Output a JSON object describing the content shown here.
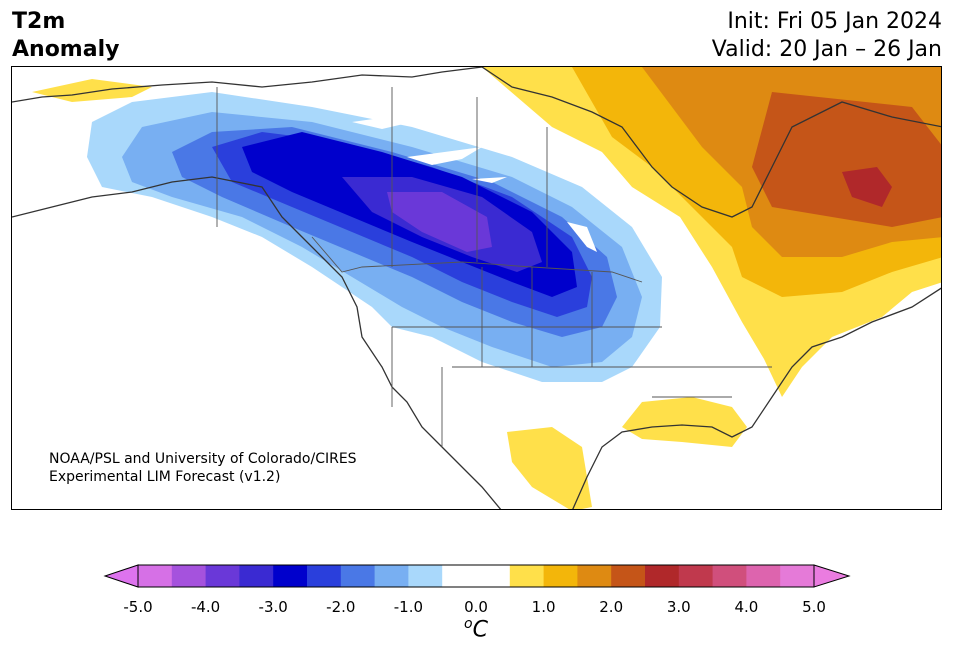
{
  "title": {
    "left_line1": "T2m",
    "left_line2": "Anomaly",
    "right_line1": "Init: Fri 05 Jan 2024",
    "right_line2": "Valid: 20 Jan – 26 Jan"
  },
  "credit": {
    "line1": "NOAA/PSL and University of Colorado/CIRES",
    "line2": "Experimental LIM Forecast (v1.2)"
  },
  "colorbar": {
    "units": "oC",
    "units_base": "C",
    "units_sup": "o",
    "ticks": [
      "-5.0",
      "-4.0",
      "-3.0",
      "-2.0",
      "-1.0",
      "0.0",
      "1.0",
      "2.0",
      "3.0",
      "4.0",
      "5.0"
    ],
    "colors": [
      "#d670e6",
      "#a552dd",
      "#6a38d8",
      "#3a2ad2",
      "#0000cc",
      "#2a3fdc",
      "#4a78e6",
      "#78aff2",
      "#a9d8fb",
      "#ffffff",
      "#ffffff",
      "#ffe04a",
      "#f3b60a",
      "#de8a12",
      "#c55518",
      "#b0282a",
      "#c0394d",
      "#d04f7c",
      "#dd64ae",
      "#e57ad8"
    ],
    "under_color": "#dd73ee",
    "over_color": "#ea7ce0"
  },
  "map": {
    "region": "North America",
    "variable": "2m temperature anomaly",
    "cold_anomaly_center": "Western Canada / Northern Plains",
    "warm_anomaly_center": "Quebec / Labrador"
  }
}
